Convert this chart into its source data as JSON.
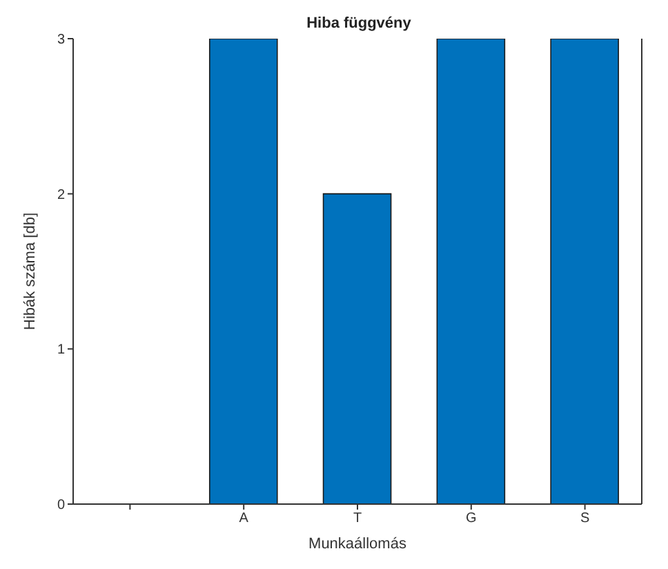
{
  "chart_data": {
    "type": "bar",
    "title": "Hiba függvény",
    "xlabel": "Munkaállomás",
    "ylabel": "Hibák száma [db]",
    "categories": [
      null,
      "A",
      "T",
      "G",
      "S"
    ],
    "values": [
      null,
      3,
      2,
      3,
      3
    ],
    "color": "#0072bd",
    "ylim": [
      0,
      3
    ],
    "yticks": [
      0,
      1,
      2,
      3
    ],
    "grid": false
  }
}
